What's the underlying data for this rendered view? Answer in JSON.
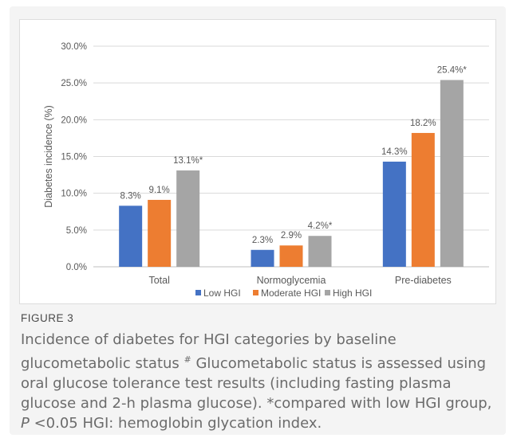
{
  "figure": {
    "label": "FIGURE 3",
    "caption_part1": "Incidence of diabetes for HGI categories by baseline glucometabolic status ",
    "caption_sup": "#",
    "caption_part2": " Glucometabolic status is assessed using oral glucose tolerance test results (including fasting plasma glucose and 2-h plasma glucose). *compared with low HGI group, ",
    "caption_p": "P",
    "caption_part3": " <0.05 HGI: hemoglobin glycation index."
  },
  "chart_data": {
    "type": "bar",
    "title": "",
    "xlabel": "",
    "ylabel": "Diabetes incidence (%)",
    "ylim": [
      0,
      30
    ],
    "yticks": [
      "0.0%",
      "5.0%",
      "10.0%",
      "15.0%",
      "20.0%",
      "25.0%",
      "30.0%"
    ],
    "categories": [
      "Total",
      "Normoglycemia",
      "Pre-diabetes"
    ],
    "series": [
      {
        "name": "Low HGI",
        "color": "#4472c4",
        "values": [
          8.3,
          2.3,
          14.3
        ],
        "labels": [
          "8.3%",
          "2.3%",
          "14.3%"
        ]
      },
      {
        "name": "Moderate HGI",
        "color": "#ed7d31",
        "values": [
          9.1,
          2.9,
          18.2
        ],
        "labels": [
          "9.1%",
          "2.9%",
          "18.2%"
        ]
      },
      {
        "name": "High HGI",
        "color": "#a5a5a5",
        "values": [
          13.1,
          4.2,
          25.4
        ],
        "labels": [
          "13.1%*",
          "4.2%*",
          "25.4%*"
        ]
      }
    ],
    "grid": true,
    "legend": "bottom"
  }
}
